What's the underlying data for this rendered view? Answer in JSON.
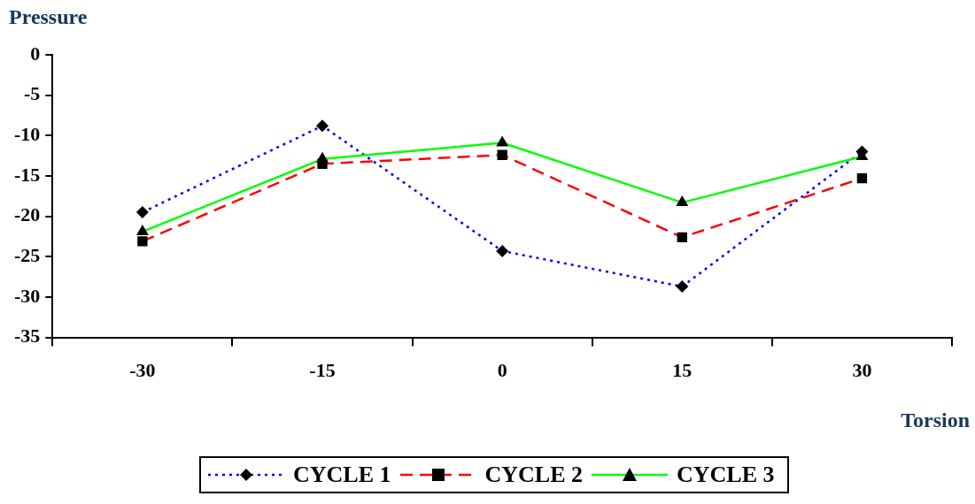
{
  "chart_data": {
    "type": "line",
    "title": "Pressure",
    "xlabel": "Torsion",
    "categories": [
      "-30",
      "-15",
      "0",
      "15",
      "30"
    ],
    "ylim": [
      -35,
      0
    ],
    "yticks": [
      -35,
      -30,
      -25,
      -20,
      -15,
      -10,
      -5,
      0
    ],
    "grid": false,
    "legend": "bottom",
    "series": [
      {
        "name": "CYCLE 1",
        "color": "#0000ff",
        "marker": "diamond",
        "line_style": "dotted",
        "values": [
          -19.5,
          -8.8,
          -24.3,
          -28.7,
          -12.0
        ]
      },
      {
        "name": "CYCLE 2",
        "color": "#ff0000",
        "marker": "square",
        "line_style": "dashed",
        "values": [
          -23.1,
          -13.5,
          -12.4,
          -22.6,
          -15.3
        ]
      },
      {
        "name": "CYCLE 3",
        "color": "#00ff00",
        "marker": "triangle",
        "line_style": "solid",
        "values": [
          -21.9,
          -12.9,
          -10.9,
          -18.3,
          -12.6
        ]
      }
    ]
  }
}
